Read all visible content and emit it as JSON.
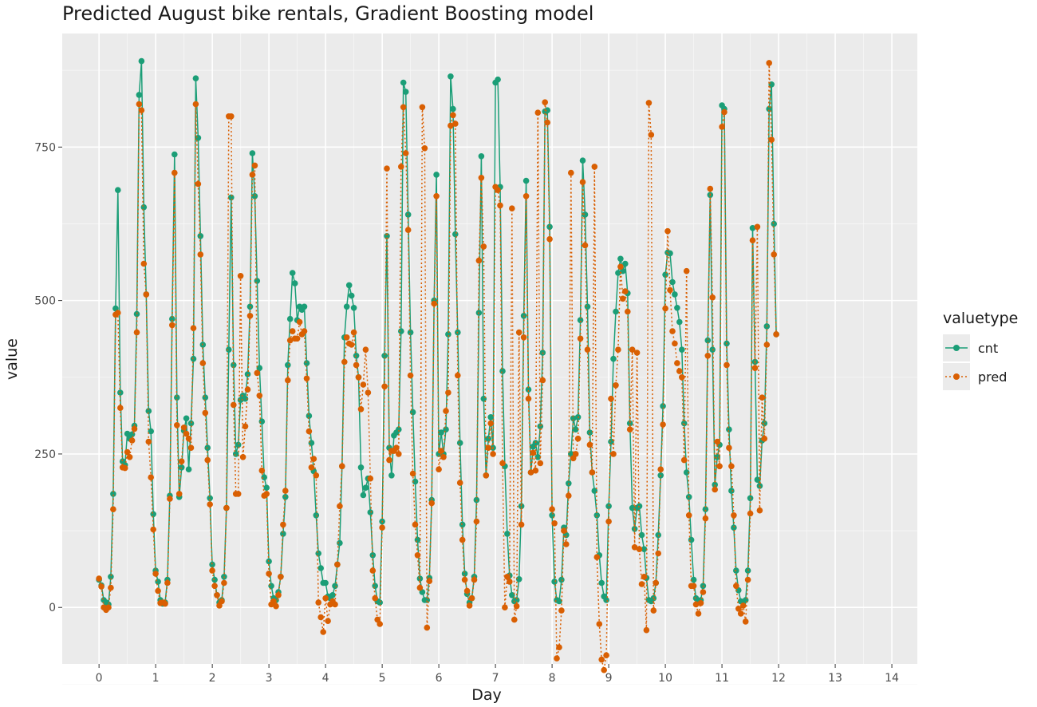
{
  "chart_data": {
    "type": "line",
    "title": "Predicted August bike rentals, Gradient Boosting model",
    "xlabel": "Day",
    "ylabel": "value",
    "xlim": [
      -0.65,
      14.45
    ],
    "ylim": [
      -92,
      935
    ],
    "x_ticks": [
      0,
      1,
      2,
      3,
      4,
      5,
      6,
      7,
      8,
      9,
      10,
      11,
      12,
      13,
      14
    ],
    "x_tick_labels": [
      "0",
      "1",
      "2",
      "3",
      "4",
      "5",
      "6",
      "7",
      "8",
      "9",
      "10",
      "11",
      "12",
      "13",
      "14"
    ],
    "y_ticks": [
      0,
      250,
      500,
      750
    ],
    "y_tick_labels": [
      "0",
      "250",
      "500",
      "750"
    ],
    "grid": true,
    "legend": {
      "title": "valuetype",
      "placement": "right",
      "entries": [
        "cnt",
        "pred"
      ]
    },
    "x_step_hours": 24,
    "series": [
      {
        "name": "cnt",
        "color": "#1b9e77",
        "linestyle": "solid",
        "marker": "circle",
        "values": [
          45,
          36,
          12,
          8,
          5,
          50,
          185,
          487,
          680,
          350,
          238,
          232,
          283,
          275,
          282,
          296,
          478,
          835,
          890,
          652,
          510,
          320,
          287,
          152,
          95,
          42
        ],
        "days": [
          [
            45,
            36,
            12,
            8,
            5,
            50,
            185,
            487,
            680,
            350,
            238,
            232,
            283,
            275,
            282,
            296,
            478,
            835,
            890,
            652,
            510,
            320,
            287,
            152,
            95,
            42
          ],
          [
            60,
            42,
            12,
            6,
            8,
            45,
            182,
            470,
            738,
            342,
            180,
            228,
            288,
            308,
            225,
            300,
            405,
            862,
            765,
            605,
            428,
            342,
            260,
            178,
            95,
            45
          ],
          [
            70,
            45,
            20,
            8,
            12,
            50,
            162,
            420,
            668,
            395,
            250,
            265,
            338,
            345,
            340,
            380,
            490,
            740,
            670,
            532,
            390,
            303,
            212,
            195,
            150,
            120
          ],
          [
            75,
            35,
            15,
            12,
            25,
            50,
            120,
            180,
            395,
            470,
            545,
            528,
            468,
            490,
            485,
            490,
            398,
            312,
            268,
            222,
            150,
            88,
            64,
            40,
            42,
            55
          ],
          [
            40,
            18,
            15,
            20,
            35,
            70,
            105,
            230,
            440,
            490,
            525,
            508,
            488,
            410,
            375,
            228,
            183,
            195,
            210,
            155,
            85,
            35,
            10,
            8,
            10,
            20
          ],
          [
            140,
            410,
            605,
            260,
            215,
            280,
            285,
            290,
            450,
            855,
            840,
            640,
            448,
            318,
            205,
            110,
            47,
            25,
            12,
            12,
            48,
            175,
            500,
            705,
            330,
            215
          ],
          [
            250,
            285,
            250,
            290,
            445,
            865,
            812,
            608,
            448,
            268,
            135,
            55,
            22,
            8,
            15,
            50,
            175,
            480,
            735,
            340,
            215,
            275,
            310,
            260,
            238,
            440
          ],
          [
            855,
            860,
            685,
            385,
            230,
            120,
            52,
            20,
            10,
            12,
            46,
            165,
            475,
            695,
            355,
            220,
            262,
            268,
            245,
            295,
            415,
            808,
            810,
            620,
            478,
            335
          ],
          [
            150,
            42,
            12,
            10,
            45,
            130,
            118,
            202,
            250,
            308,
            290,
            310,
            468,
            728,
            640,
            490,
            285,
            220,
            190,
            150,
            85,
            40,
            18,
            12,
            22,
            58
          ],
          [
            165,
            270,
            405,
            482,
            545,
            568,
            548,
            560,
            512,
            300,
            162,
            128,
            162,
            165,
            118,
            95,
            48,
            12,
            10,
            15,
            40,
            118,
            215,
            328,
            450,
            482
          ],
          [
            542,
            578,
            577,
            530,
            510,
            488,
            465,
            420,
            300,
            220,
            180,
            110,
            45,
            15,
            10,
            12,
            35,
            160,
            435,
            672,
            420,
            200,
            245,
            265,
            285,
            465
          ],
          [
            818,
            812,
            430,
            290,
            190,
            130,
            60,
            28,
            10,
            8,
            12,
            60,
            178,
            618,
            400,
            208,
            198,
            272,
            300,
            458,
            812,
            852,
            625,
            445,
            308,
            188
          ]
        ]
      }
    ]
  }
}
